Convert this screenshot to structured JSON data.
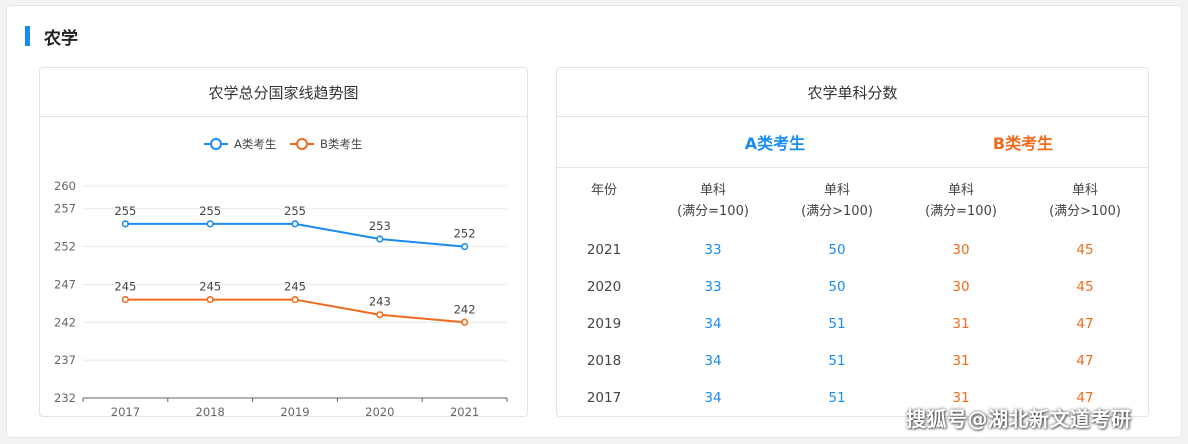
{
  "section": {
    "title": "农学"
  },
  "colors": {
    "a": "#1a8cf0",
    "b": "#f26b1d",
    "accent": "#1a8cf0"
  },
  "chart_title": "农学总分国家线趋势图",
  "chart_data": {
    "type": "line",
    "categories": [
      "2017",
      "2018",
      "2019",
      "2020",
      "2021"
    ],
    "series": [
      {
        "name": "A类考生",
        "values": [
          255,
          255,
          255,
          253,
          252
        ],
        "color": "#1a8cf0"
      },
      {
        "name": "B类考生",
        "values": [
          245,
          245,
          245,
          243,
          242
        ],
        "color": "#f26b1d"
      }
    ],
    "yticks": [
      260,
      257,
      252,
      247,
      242,
      237,
      232
    ],
    "ylim": [
      232,
      260
    ],
    "legend": "top-center",
    "grid": true
  },
  "table": {
    "title": "农学单科分数",
    "group_a": "A类考生",
    "group_b": "B类考生",
    "headers": [
      [
        "年份",
        ""
      ],
      [
        "单科",
        "(满分=100)"
      ],
      [
        "单科",
        "(满分>100)"
      ],
      [
        "单科",
        "(满分=100)"
      ],
      [
        "单科",
        "(满分>100)"
      ]
    ],
    "rows": [
      [
        "2021",
        "33",
        "50",
        "30",
        "45"
      ],
      [
        "2020",
        "33",
        "50",
        "30",
        "45"
      ],
      [
        "2019",
        "34",
        "51",
        "31",
        "47"
      ],
      [
        "2018",
        "34",
        "51",
        "31",
        "47"
      ],
      [
        "2017",
        "34",
        "51",
        "31",
        "47"
      ]
    ]
  },
  "watermark": "搜狐号@湖北新文道考研"
}
